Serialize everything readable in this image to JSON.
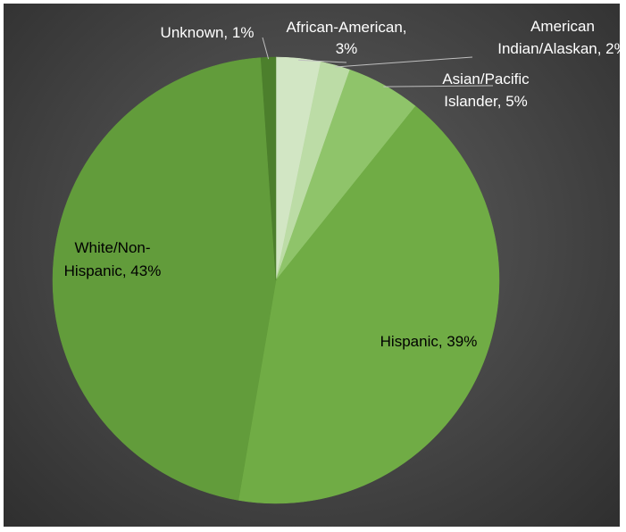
{
  "chart_data": {
    "type": "pie",
    "title": "",
    "slices": [
      {
        "label": "African-American, 3%",
        "category": "African-American",
        "value": 3,
        "color": "#d2e6c4",
        "label_color": "#ffffff"
      },
      {
        "label": "American Indian/Alaskan, 2%",
        "category": "American Indian/Alaskan",
        "value": 2,
        "color": "#bcdca6",
        "label_color": "#ffffff"
      },
      {
        "label": "Asian/Pacific Islander, 5%",
        "category": "Asian/Pacific Islander",
        "value": 5,
        "color": "#8fc46a",
        "label_color": "#ffffff"
      },
      {
        "label": "Hispanic, 39%",
        "category": "Hispanic",
        "value": 39,
        "color": "#70ac45",
        "label_color": "#000000"
      },
      {
        "label": "White/Non-Hispanic, 43%",
        "category": "White/Non-Hispanic",
        "value": 43,
        "color": "#629c3b",
        "label_color": "#000000"
      },
      {
        "label": "Unknown, 1%",
        "category": "Unknown",
        "value": 1,
        "color": "#4c7f2c",
        "label_color": "#ffffff"
      }
    ],
    "legend": "none",
    "label_style": "category, percent"
  }
}
